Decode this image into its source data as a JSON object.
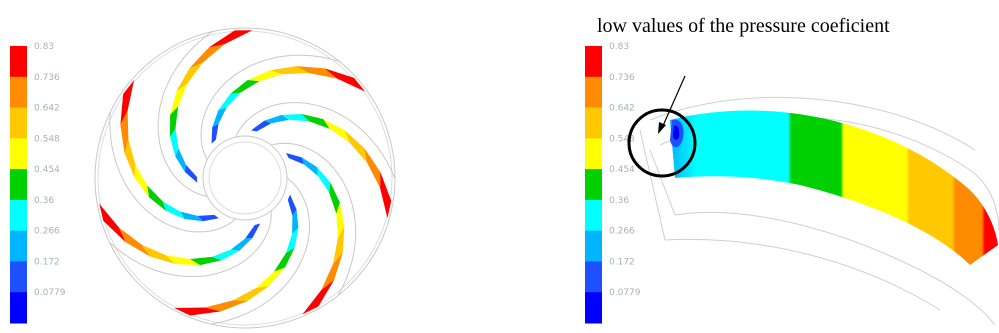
{
  "legend": {
    "ticks": [
      "0.83",
      "0.736",
      "0.642",
      "0.548",
      "0.454",
      "0.36",
      "0.266",
      "0.172",
      "0.0779"
    ],
    "band_colors": [
      "#ff0000",
      "#ff8c00",
      "#ffc800",
      "#ffff00",
      "#00d000",
      "#00ffff",
      "#00b4ff",
      "#1e50ff",
      "#0000ff"
    ]
  },
  "left_panel": {
    "view": "impeller-full-view",
    "blade_count": 7
  },
  "right_panel": {
    "view": "single-blade-channel",
    "annotation": "low values of the pressure coeficient"
  }
}
